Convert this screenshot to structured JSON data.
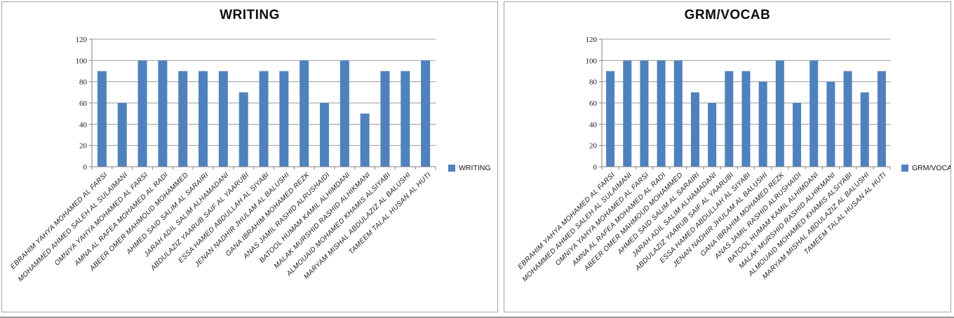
{
  "accent_color": "#4F81BD",
  "grid_color": "#9c9c9c",
  "axis_color": "#7f7f7f",
  "chart_data": [
    {
      "type": "bar",
      "title": "WRITING",
      "legend": "WRITING",
      "legend_position": "right",
      "grid": true,
      "bar_color": "#4F81BD",
      "ylim": [
        0,
        120
      ],
      "ytick_step": 20,
      "categories": [
        "EBRAHIM YAHYA MOHAMED AL FARSI",
        "MOHAMMED AHMED SALEH AL SULAIMANI",
        "OMNIYA YAHYA MOHAMED AL FARSI",
        "AMNA AL RAFEA MOHAMED AL RADI",
        "ABEER OMER MAHMOUD MOHAMMED",
        "AHMED SAID SALIM AL SARAIRI",
        "JARAH ADIL SALIM ALHAMADANI",
        "ABDULAZIZ YAARUB SAIF AL YAARUBI",
        "ESSA HAMED ABDULLAH AL SIYABI",
        "JENAN NADHIR JHULAM AL BALUSHI",
        "GANA IBRAHIM MOHAMED REZK",
        "ANAS  JAMIL RASHID ALRUSHAIDI",
        "BATOOL  HUMAM KAMIL ALHIMDANI",
        "MALAK  MURSHID RASHID ALHIKMANI",
        "ALMOUAID  MOHAMED KHAMIS ALSIYABI",
        "MARYAM  MISHAL ABDULAZIZ AL BALUSHI",
        "TAMEEM  TALAL HUSAN AL HUTI"
      ],
      "values": [
        90,
        60,
        100,
        100,
        90,
        90,
        90,
        70,
        90,
        90,
        100,
        60,
        100,
        50,
        90,
        90,
        100
      ]
    },
    {
      "type": "bar",
      "title": "GRM/VOCAB",
      "legend": "GRM/VOCAB",
      "legend_position": "right",
      "grid": true,
      "bar_color": "#4F81BD",
      "ylim": [
        0,
        120
      ],
      "ytick_step": 20,
      "categories": [
        "EBRAHIM YAHYA MOHAMED AL FARSI",
        "MOHAMMED AHMED SALEH AL SULAIMANI",
        "OMNIYA YAHYA MOHAMED AL FARSI",
        "AMNA AL RAFEA MOHAMED AL RADI",
        "ABEER OMER MAHMOUD MOHAMMED",
        "AHMED SAID SALIM AL SARAIRI",
        "JARAH ADIL SALIM ALHAMADANI",
        "ABDULAZIZ YAARUB SAIF AL YAARUBI",
        "ESSA HAMED ABDULLAH AL SIYABI",
        "JENAN NADHIR JHULAM AL BALUSHI",
        "GANA IBRAHIM MOHAMED REZK",
        "ANAS  JAMIL RASHID ALRUSHAIDI",
        "BATOOL  HUMAM KAMIL ALHIMDANI",
        "MALAK  MURSHID RASHID ALHIKMANI",
        "ALMOUAID  MOHAMED KHAMIS ALSIYABI",
        "MARYAM  MISHAL ABDULAZIZ AL BALUSHI",
        "TAMEEM  TALAL HUSAN AL HUTI"
      ],
      "values": [
        90,
        100,
        100,
        100,
        100,
        70,
        60,
        90,
        90,
        80,
        100,
        60,
        100,
        80,
        90,
        70,
        90
      ]
    }
  ]
}
